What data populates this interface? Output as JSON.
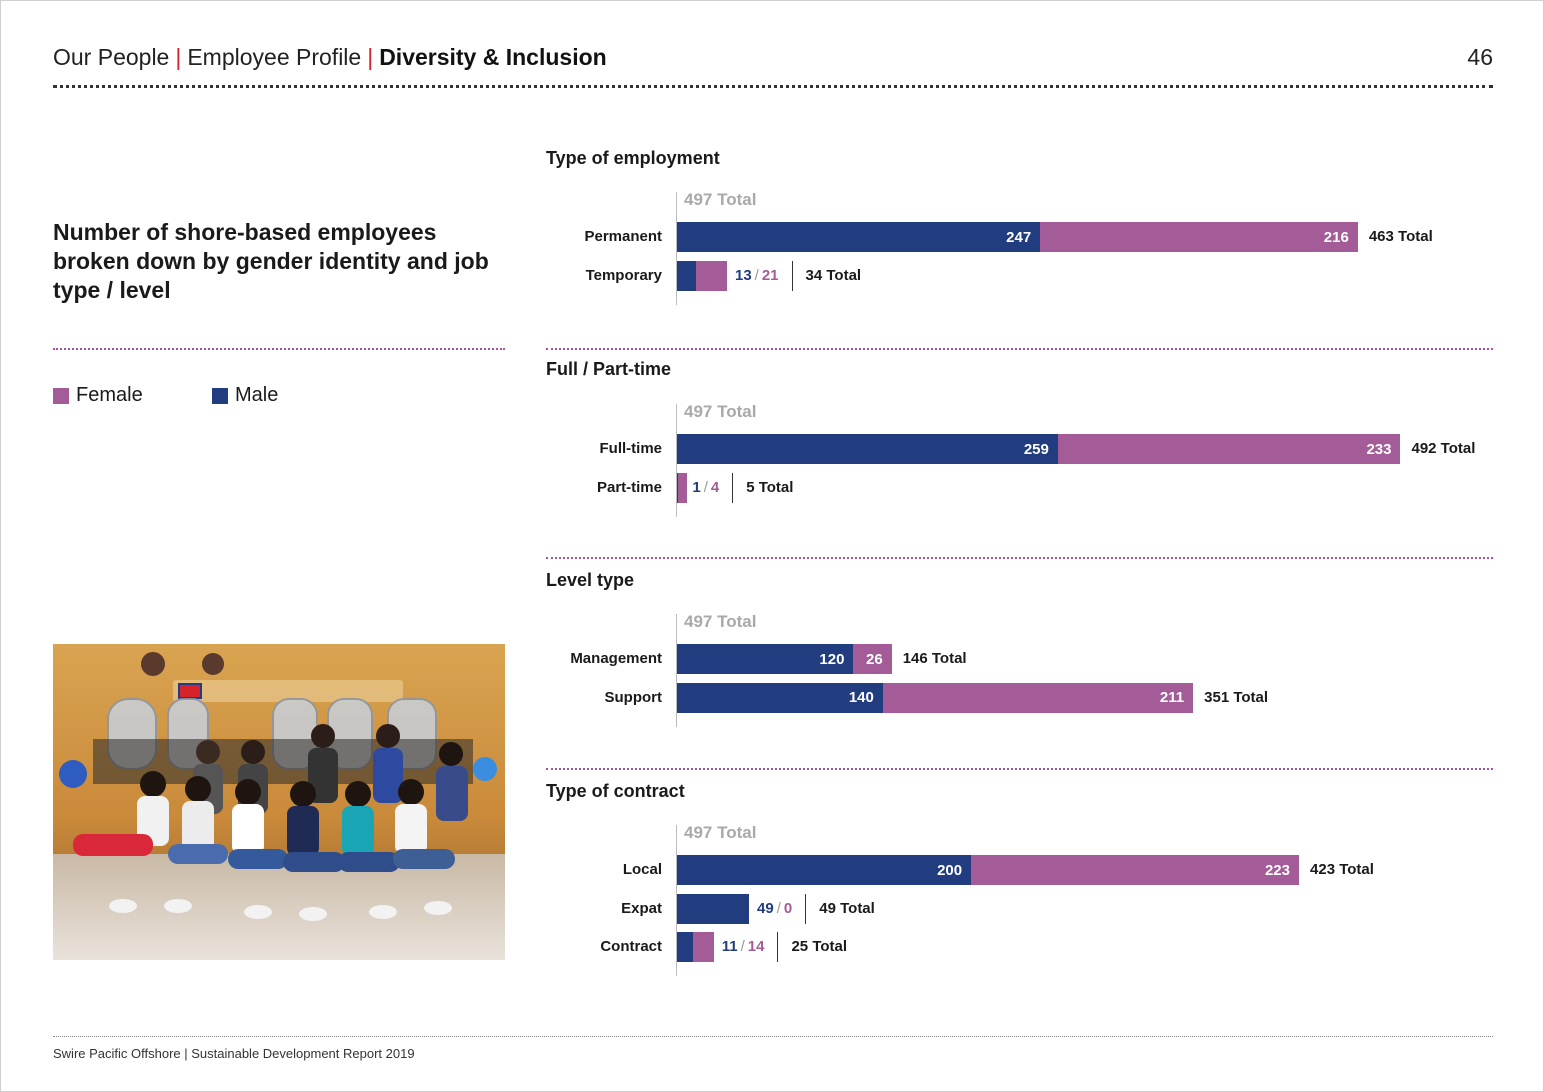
{
  "header": {
    "crumb1": "Our People",
    "crumb2": "Employee Profile",
    "crumb3": "Diversity & Inclusion",
    "separator": "|",
    "page_number": "46"
  },
  "intro_title": "Number of shore-based employees broken down by gender identity and job type / level",
  "legend": {
    "female": "Female",
    "male": "Male"
  },
  "colors": {
    "male": "#213d80",
    "female": "#a45c99",
    "accent_red": "#d6222b"
  },
  "footer": "Swire Pacific Offshore | Sustainable Development Report 2019",
  "chart_data": [
    {
      "type": "bar",
      "orientation": "horizontal",
      "stacked": true,
      "title": "Type of employment",
      "total_label": "497 Total",
      "categories": [
        "Permanent",
        "Temporary"
      ],
      "series": [
        {
          "name": "Male",
          "values": [
            247,
            13
          ]
        },
        {
          "name": "Female",
          "values": [
            216,
            21
          ]
        }
      ],
      "totals": [
        "463 Total",
        "34 Total"
      ]
    },
    {
      "type": "bar",
      "orientation": "horizontal",
      "stacked": true,
      "title": "Full / Part-time",
      "total_label": "497 Total",
      "categories": [
        "Full-time",
        "Part-time"
      ],
      "series": [
        {
          "name": "Male",
          "values": [
            259,
            1
          ]
        },
        {
          "name": "Female",
          "values": [
            233,
            4
          ]
        }
      ],
      "totals": [
        "492 Total",
        "5 Total"
      ]
    },
    {
      "type": "bar",
      "orientation": "horizontal",
      "stacked": true,
      "title": "Level type",
      "total_label": "497 Total",
      "categories": [
        "Management",
        "Support"
      ],
      "series": [
        {
          "name": "Male",
          "values": [
            120,
            140
          ]
        },
        {
          "name": "Female",
          "values": [
            26,
            211
          ]
        }
      ],
      "totals": [
        "146 Total",
        "351 Total"
      ]
    },
    {
      "type": "bar",
      "orientation": "horizontal",
      "stacked": true,
      "title": "Type of contract",
      "total_label": "497 Total",
      "categories": [
        "Local",
        "Expat",
        "Contract"
      ],
      "series": [
        {
          "name": "Male",
          "values": [
            200,
            49,
            11
          ]
        },
        {
          "name": "Female",
          "values": [
            223,
            0,
            14
          ]
        }
      ],
      "totals": [
        "423 Total",
        "49 Total",
        "25 Total"
      ]
    }
  ]
}
